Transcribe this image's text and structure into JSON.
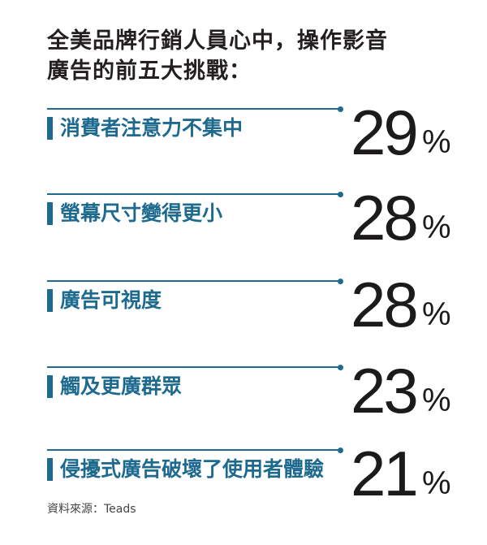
{
  "title": {
    "line1": "全美品牌行銷人員心中，操作影音",
    "line2": "廣告的前五大挑戰："
  },
  "chart_data": {
    "type": "table",
    "unit": "%",
    "items": [
      {
        "label": "消費者注意力不集中",
        "value": 29
      },
      {
        "label": "螢幕尺寸變得更小",
        "value": 28
      },
      {
        "label": "廣告可視度",
        "value": 28
      },
      {
        "label": "觸及更廣群眾",
        "value": 23
      },
      {
        "label": "侵擾式廣告破壞了使用者體驗",
        "value": 21
      }
    ]
  },
  "source": "資料來源：Teads",
  "colors": {
    "accent": "#1e6a8f",
    "text": "#231f20"
  }
}
